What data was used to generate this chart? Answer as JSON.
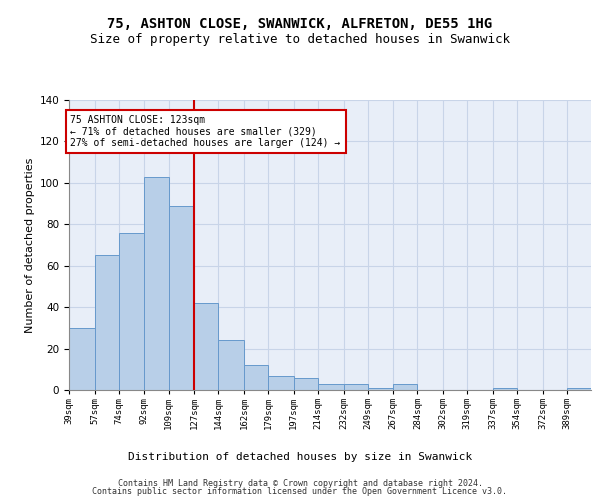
{
  "title1": "75, ASHTON CLOSE, SWANWICK, ALFRETON, DE55 1HG",
  "title2": "Size of property relative to detached houses in Swanwick",
  "xlabel": "Distribution of detached houses by size in Swanwick",
  "ylabel": "Number of detached properties",
  "bar_values": [
    30,
    65,
    76,
    103,
    89,
    42,
    24,
    12,
    7,
    6,
    3,
    3,
    1,
    3,
    0,
    0,
    0,
    1,
    0,
    0,
    1
  ],
  "bin_edges": [
    39,
    57,
    74,
    92,
    109,
    127,
    144,
    162,
    179,
    197,
    214,
    232,
    249,
    267,
    284,
    302,
    319,
    337,
    354,
    372,
    389
  ],
  "bar_color": "#b8cfe8",
  "bar_edge_color": "#6699cc",
  "property_line_x": 127,
  "property_line_label": "75 ASHTON CLOSE: 123sqm",
  "annotation_line1": "← 71% of detached houses are smaller (329)",
  "annotation_line2": "27% of semi-detached houses are larger (124) →",
  "annotation_box_facecolor": "#ffffff",
  "annotation_box_edgecolor": "#cc0000",
  "vline_color": "#cc0000",
  "ylim": [
    0,
    140
  ],
  "yticks": [
    0,
    20,
    40,
    60,
    80,
    100,
    120,
    140
  ],
  "grid_color": "#c8d4e8",
  "background_color": "#e8eef8",
  "footer1": "Contains HM Land Registry data © Crown copyright and database right 2024.",
  "footer2": "Contains public sector information licensed under the Open Government Licence v3.0."
}
